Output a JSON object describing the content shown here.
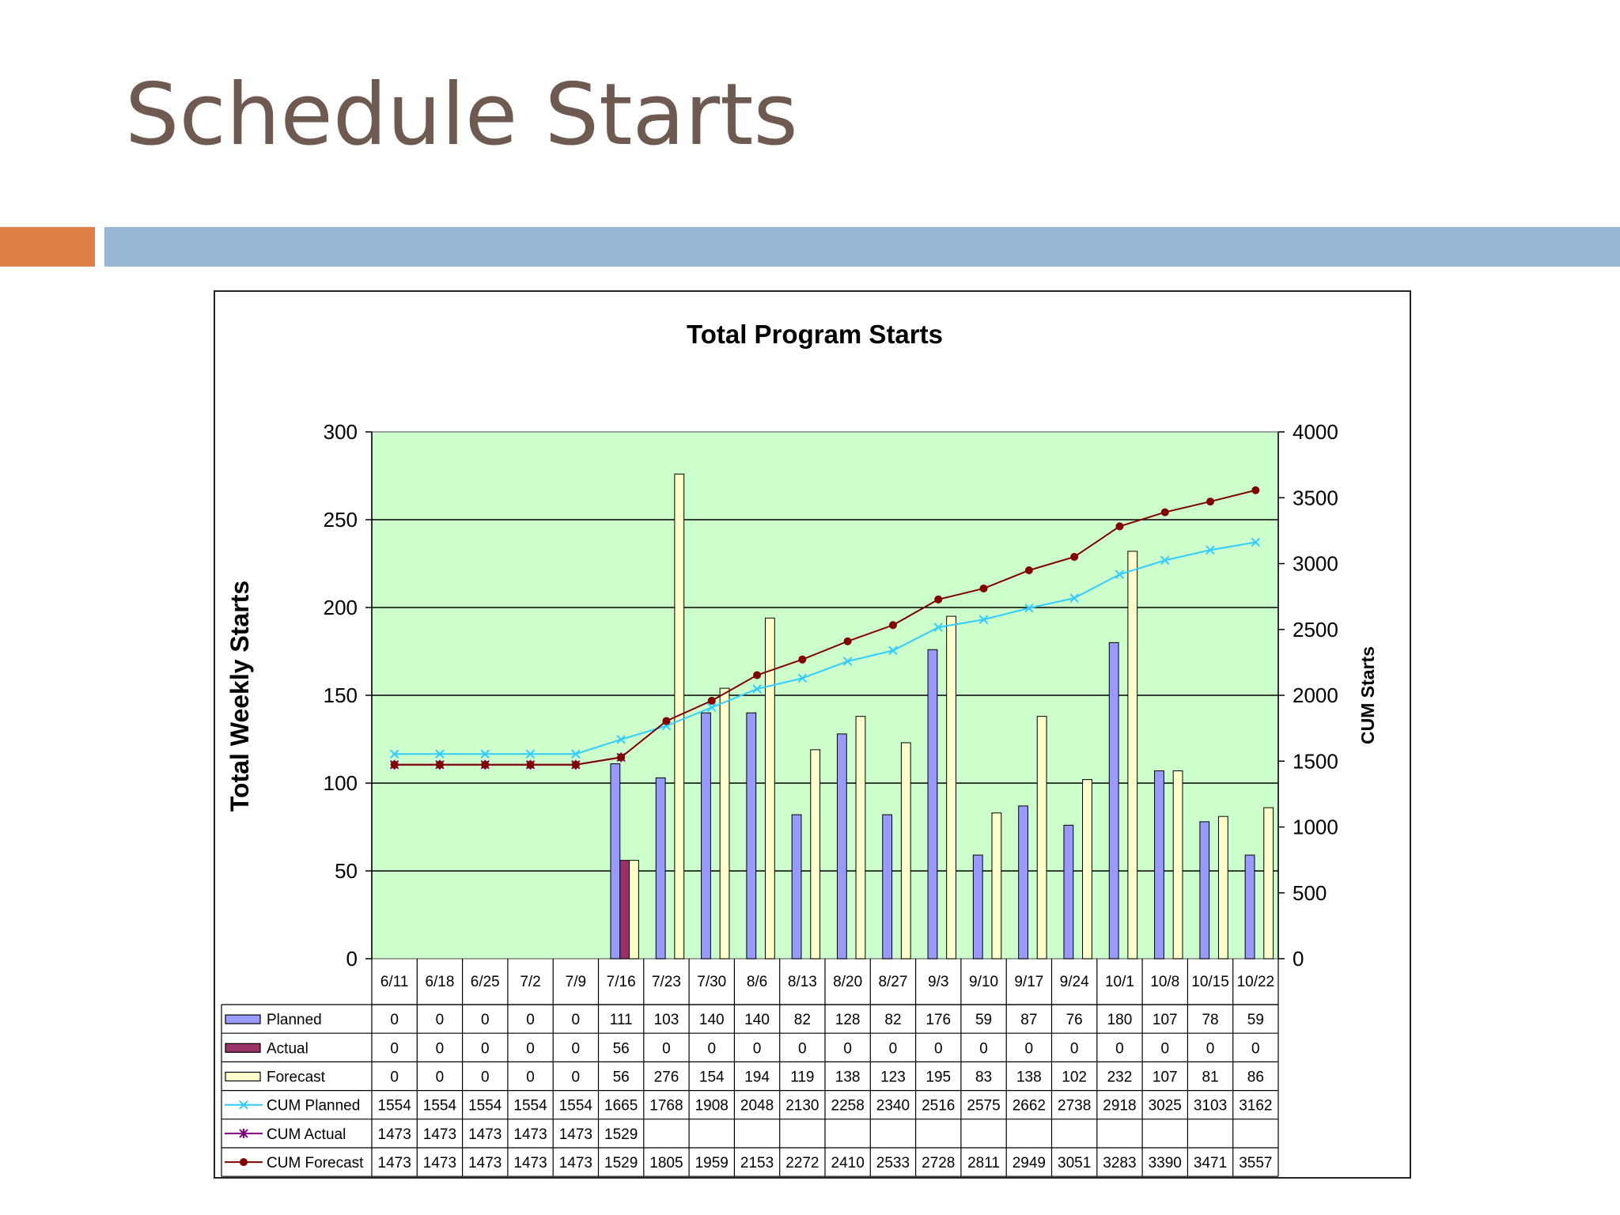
{
  "slide": {
    "title": "Schedule Starts"
  },
  "colors": {
    "title": "#6e5a50",
    "accent_orange": "#dd8048",
    "accent_blue": "#95b6d4",
    "plot_bg": "#ccffcc",
    "planned": "#9999ff",
    "actual": "#993366",
    "forecast": "#ffffcc",
    "cum_planned": "#33ccff",
    "cum_actual": "#800080",
    "cum_forecast": "#800000"
  },
  "chart_data": {
    "type": "bar",
    "title": "Total Program Starts",
    "ylabel": "Total Weekly Starts",
    "y2label": "CUM Starts",
    "ylim": [
      0,
      300
    ],
    "y2lim": [
      0,
      4000
    ],
    "yticks": [
      "0",
      "50",
      "100",
      "150",
      "200",
      "250",
      "300"
    ],
    "y2ticks": [
      "0",
      "500",
      "1000",
      "1500",
      "2000",
      "2500",
      "3000",
      "3500",
      "4000"
    ],
    "categories": [
      "6/11",
      "6/18",
      "6/25",
      "7/2",
      "7/9",
      "7/16",
      "7/23",
      "7/30",
      "8/6",
      "8/13",
      "8/20",
      "8/27",
      "9/3",
      "9/10",
      "9/17",
      "9/24",
      "10/1",
      "10/8",
      "10/15",
      "10/22"
    ],
    "series": [
      {
        "name": "Planned",
        "kind": "bar",
        "axis": "left",
        "values": [
          0,
          0,
          0,
          0,
          0,
          111,
          103,
          140,
          140,
          82,
          128,
          82,
          176,
          59,
          87,
          76,
          180,
          107,
          78,
          59
        ]
      },
      {
        "name": "Actual",
        "kind": "bar",
        "axis": "left",
        "values": [
          0,
          0,
          0,
          0,
          0,
          56,
          0,
          0,
          0,
          0,
          0,
          0,
          0,
          0,
          0,
          0,
          0,
          0,
          0,
          0
        ]
      },
      {
        "name": "Forecast",
        "kind": "bar",
        "axis": "left",
        "values": [
          0,
          0,
          0,
          0,
          0,
          56,
          276,
          154,
          194,
          119,
          138,
          123,
          195,
          83,
          138,
          102,
          232,
          107,
          81,
          86
        ]
      },
      {
        "name": "CUM Planned",
        "kind": "line",
        "axis": "right",
        "values": [
          1554,
          1554,
          1554,
          1554,
          1554,
          1665,
          1768,
          1908,
          2048,
          2130,
          2258,
          2340,
          2516,
          2575,
          2662,
          2738,
          2918,
          3025,
          3103,
          3162
        ]
      },
      {
        "name": "CUM Actual",
        "kind": "line",
        "axis": "right",
        "values": [
          1473,
          1473,
          1473,
          1473,
          1473,
          1529,
          null,
          null,
          null,
          null,
          null,
          null,
          null,
          null,
          null,
          null,
          null,
          null,
          null,
          null
        ]
      },
      {
        "name": "CUM Forecast",
        "kind": "line",
        "axis": "right",
        "values": [
          1473,
          1473,
          1473,
          1473,
          1473,
          1529,
          1805,
          1959,
          2153,
          2272,
          2410,
          2533,
          2728,
          2811,
          2949,
          3051,
          3283,
          3390,
          3471,
          3557
        ]
      }
    ],
    "grid": true,
    "legend": "data-table"
  }
}
